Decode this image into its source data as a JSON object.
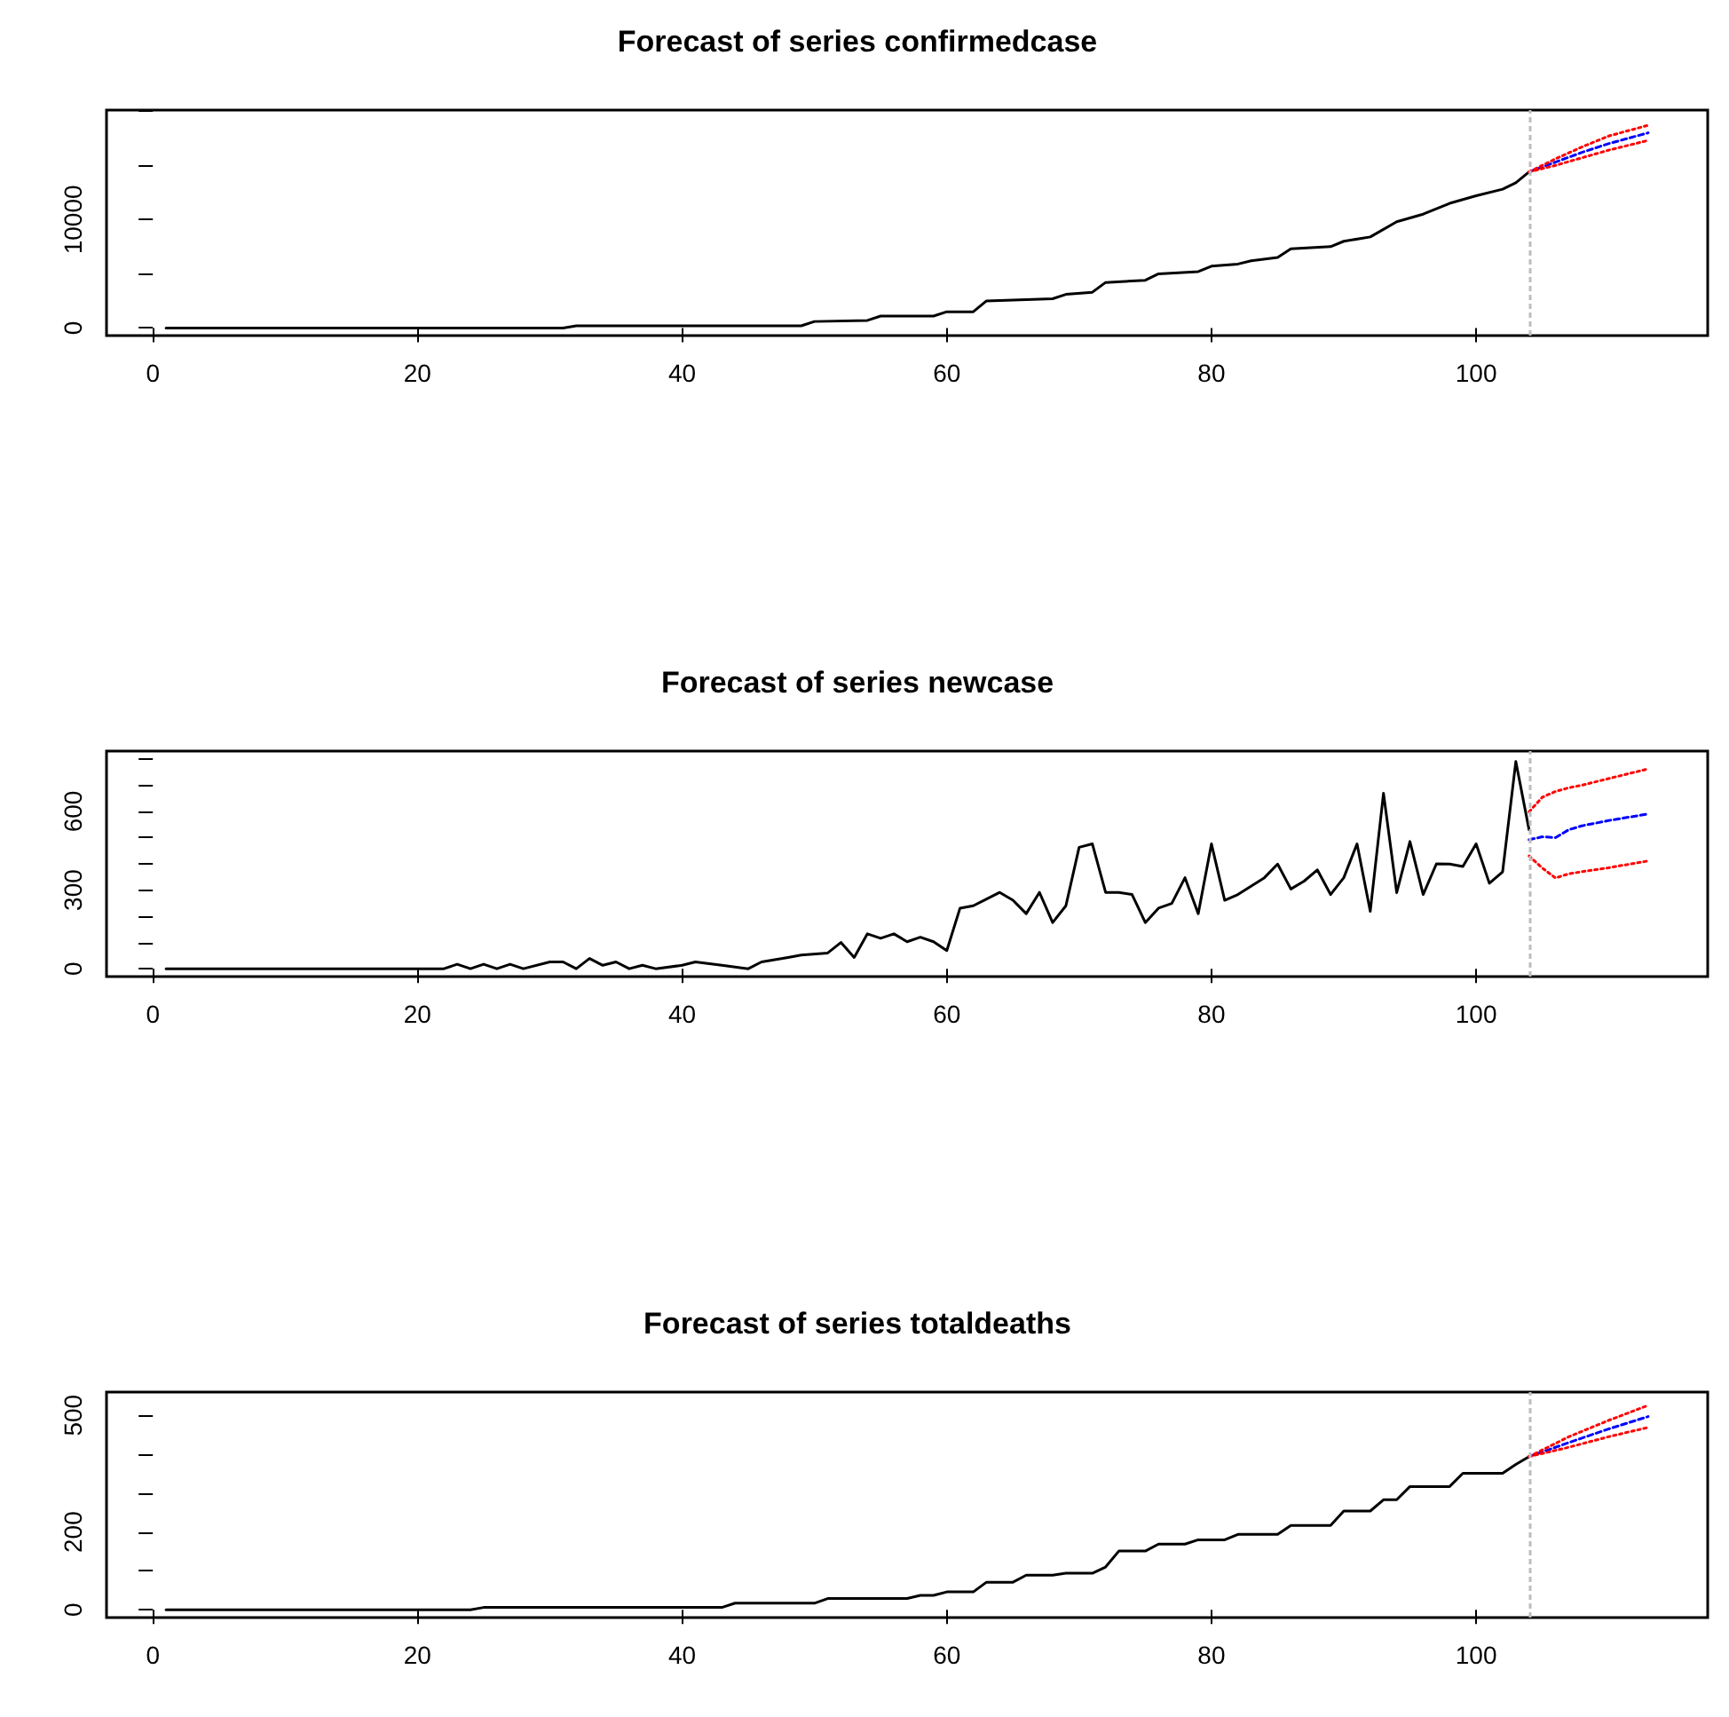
{
  "chart_data": [
    {
      "type": "line",
      "title": "Forecast of series confirmedcase",
      "xlim": [
        -3.5,
        117.5
      ],
      "xticks": [
        0,
        20,
        40,
        60,
        80,
        100
      ],
      "ylim": [
        -700,
        20100
      ],
      "yticks": [
        0,
        {
          "value": 5000,
          "label": null
        },
        10000,
        {
          "value": 15000,
          "label": null
        },
        {
          "value": 20000,
          "label": null
        }
      ],
      "grid": false,
      "marker": "none",
      "series": [
        {
          "color": "#000000",
          "line_style": "solid",
          "x": [
            1,
            31,
            32,
            49,
            50,
            54,
            55,
            59,
            60,
            62,
            63,
            68,
            69,
            71,
            72,
            75,
            76,
            79,
            80,
            82,
            83,
            85,
            86,
            89,
            90,
            92,
            94,
            96,
            98,
            100,
            102,
            103,
            104
          ],
          "values": [
            0,
            0,
            200,
            200,
            600,
            700,
            1100,
            1100,
            1500,
            1500,
            2500,
            2700,
            3100,
            3300,
            4200,
            4400,
            5000,
            5200,
            5700,
            5900,
            6200,
            6500,
            7300,
            7500,
            8000,
            8400,
            9800,
            10500,
            11500,
            12200,
            12800,
            13400,
            14400
          ]
        },
        {
          "color": "#0000ff",
          "line_style": "dashed",
          "x": [
            104,
            106,
            108,
            110,
            113
          ],
          "values": [
            14400,
            15300,
            16200,
            17000,
            18000
          ]
        },
        {
          "color": "#ff0000",
          "line_style": "dotted",
          "x": [
            104,
            106,
            108,
            110,
            113
          ],
          "values": [
            14400,
            15600,
            16700,
            17700,
            18700
          ]
        },
        {
          "color": "#ff0000",
          "line_style": "dotted",
          "x": [
            104,
            106,
            108,
            110,
            113
          ],
          "values": [
            14400,
            15000,
            15700,
            16400,
            17300
          ]
        }
      ],
      "ref_lines": [
        {
          "axis": "x",
          "value": 104,
          "color": "#bebebe",
          "line_style": "dashed"
        }
      ]
    },
    {
      "type": "line",
      "title": "Forecast of series newcase",
      "xlim": [
        -3.5,
        117.5
      ],
      "xticks": [
        0,
        20,
        40,
        60,
        80,
        100
      ],
      "ylim": [
        -30,
        830
      ],
      "yticks": [
        0,
        {
          "value": 100,
          "label": null
        },
        {
          "value": 200,
          "label": null
        },
        300,
        {
          "value": 400,
          "label": null
        },
        {
          "value": 500,
          "label": null
        },
        600,
        {
          "value": 700,
          "label": null
        },
        {
          "value": 800,
          "label": null
        }
      ],
      "grid": false,
      "marker": "none",
      "series": [
        {
          "color": "#000000",
          "line_style": "solid",
          "x": [
            1,
            22,
            23,
            24,
            25,
            26,
            27,
            28,
            30,
            31,
            32,
            33,
            34,
            35,
            36,
            37,
            38,
            40,
            41,
            43,
            45,
            46,
            48,
            49,
            51,
            52,
            53,
            54,
            55,
            56,
            57,
            58,
            59,
            60,
            61,
            62,
            64,
            65,
            66,
            67,
            68,
            69,
            70,
            71,
            72,
            73,
            74,
            75,
            76,
            77,
            78,
            79,
            80,
            81,
            82,
            84,
            85,
            86,
            87,
            88,
            89,
            90,
            91,
            92,
            93,
            94,
            95,
            96,
            97,
            98,
            99,
            100,
            101,
            102,
            103,
            104
          ],
          "values": [
            0,
            0,
            17,
            0,
            17,
            0,
            17,
            0,
            26,
            26,
            0,
            39,
            13,
            26,
            0,
            13,
            0,
            13,
            26,
            13,
            0,
            26,
            43,
            52,
            60,
            100,
            43,
            133,
            116,
            133,
            103,
            120,
            103,
            69,
            231,
            240,
            291,
            261,
            210,
            291,
            176,
            240,
            463,
            476,
            291,
            291,
            283,
            176,
            231,
            249,
            347,
            210,
            476,
            261,
            283,
            347,
            399,
            304,
            334,
            377,
            283,
            347,
            476,
            219,
            669,
            290,
            485,
            283,
            400,
            399,
            390,
            476,
            326,
            369,
            790,
            530
          ]
        },
        {
          "color": "#0000ff",
          "line_style": "dashed",
          "x": [
            104,
            105,
            106,
            107,
            108,
            110,
            113
          ],
          "values": [
            492,
            503,
            500,
            530,
            545,
            565,
            590
          ]
        },
        {
          "color": "#ff0000",
          "line_style": "dotted",
          "x": [
            104,
            105,
            106,
            107,
            108,
            110,
            113
          ],
          "values": [
            598,
            654,
            676,
            690,
            700,
            725,
            762
          ]
        },
        {
          "color": "#ff0000",
          "line_style": "dotted",
          "x": [
            104,
            105,
            106,
            107,
            108,
            110,
            113
          ],
          "values": [
            430,
            384,
            346,
            362,
            370,
            385,
            411
          ]
        }
      ],
      "ref_lines": [
        {
          "axis": "x",
          "value": 104,
          "color": "#bebebe",
          "line_style": "dashed"
        }
      ]
    },
    {
      "type": "line",
      "title": "Forecast of series totaldeaths",
      "xlim": [
        -3.5,
        117.5
      ],
      "xticks": [
        0,
        20,
        40,
        60,
        80,
        100
      ],
      "ylim": [
        -20,
        560
      ],
      "yticks": [
        0,
        {
          "value": 100,
          "label": null
        },
        200,
        {
          "value": 300,
          "label": null
        },
        {
          "value": 400,
          "label": null
        },
        500
      ],
      "grid": false,
      "marker": "none",
      "series": [
        {
          "color": "#000000",
          "line_style": "solid",
          "x": [
            1,
            24,
            25,
            43,
            44,
            50,
            51,
            57,
            58,
            59,
            60,
            62,
            63,
            65,
            66,
            68,
            69,
            71,
            72,
            73,
            75,
            76,
            78,
            79,
            81,
            82,
            85,
            86,
            89,
            90,
            92,
            93,
            94,
            95,
            98,
            99,
            102,
            103,
            104
          ],
          "values": [
            0,
            0,
            6,
            6,
            17,
            17,
            29,
            29,
            37,
            37,
            46,
            46,
            71,
            71,
            89,
            89,
            94,
            94,
            110,
            151,
            151,
            169,
            169,
            180,
            180,
            194,
            194,
            217,
            217,
            254,
            254,
            283,
            283,
            317,
            317,
            351,
            351,
            374,
            394
          ]
        },
        {
          "color": "#0000ff",
          "line_style": "dashed",
          "x": [
            104,
            107,
            110,
            113
          ],
          "values": [
            394,
            430,
            465,
            497
          ]
        },
        {
          "color": "#ff0000",
          "line_style": "dotted",
          "x": [
            104,
            107,
            110,
            113
          ],
          "values": [
            394,
            445,
            487,
            526
          ]
        },
        {
          "color": "#ff0000",
          "line_style": "dotted",
          "x": [
            104,
            107,
            110,
            113
          ],
          "values": [
            394,
            418,
            445,
            469
          ]
        }
      ],
      "ref_lines": [
        {
          "axis": "x",
          "value": 104,
          "color": "#bebebe",
          "line_style": "dashed"
        }
      ]
    }
  ]
}
